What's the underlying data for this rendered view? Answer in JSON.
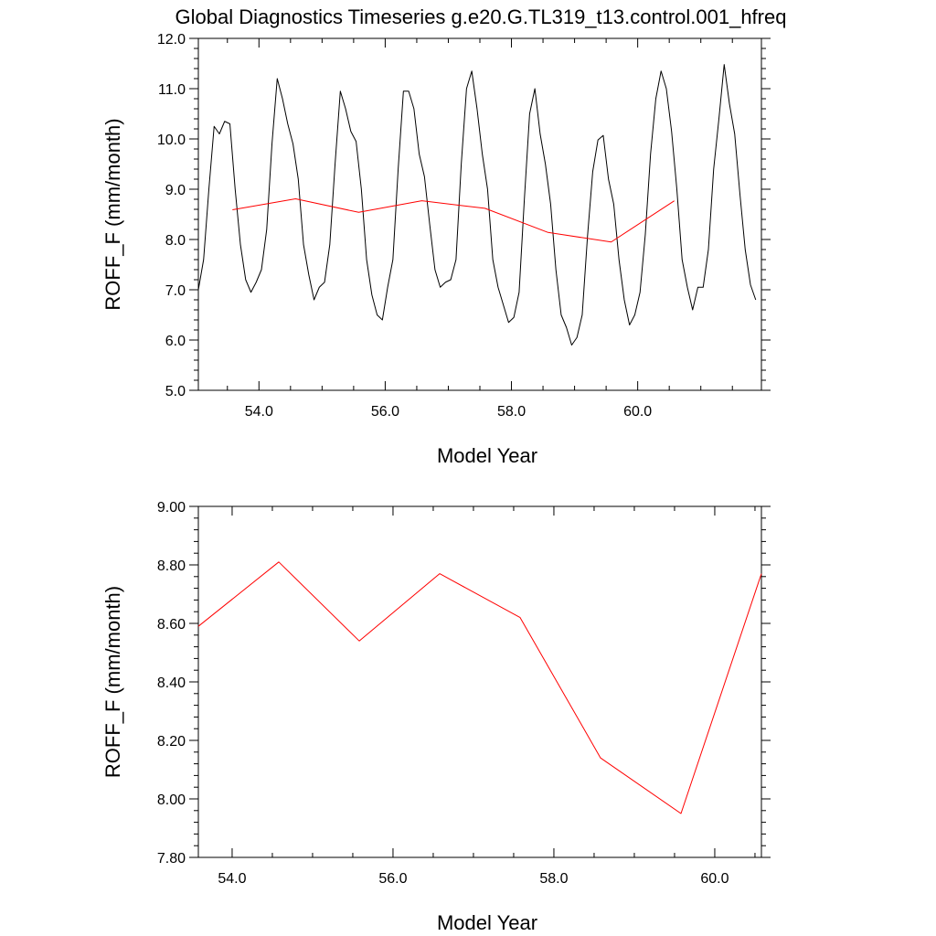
{
  "title": "Global Diagnostics Timeseries g.e20.G.TL319_t13.control.001_hfreq",
  "colors": {
    "monthly": "#000000",
    "annual": "#ff0000",
    "frame": "#000000"
  },
  "chart_data": [
    {
      "type": "line",
      "xlabel": "Model Year",
      "ylabel": "ROFF_F (mm/month)",
      "xlim": [
        53.04,
        61.96
      ],
      "ylim": [
        5.0,
        12.0
      ],
      "xticks": [
        54.0,
        56.0,
        58.0,
        60.0
      ],
      "xtick_labels": [
        "54.0",
        "56.0",
        "58.0",
        "60.0"
      ],
      "yticks": [
        5.0,
        6.0,
        7.0,
        8.0,
        9.0,
        10.0,
        11.0,
        12.0
      ],
      "ytick_labels": [
        "5.0",
        "6.0",
        "7.0",
        "8.0",
        "9.0",
        "10.0",
        "11.0",
        "12.0"
      ],
      "grid": false,
      "series": [
        {
          "key": "monthly",
          "x_start": 53.04,
          "x_step": 0.0833,
          "values": [
            7.0,
            7.6,
            9.0,
            10.25,
            10.1,
            10.35,
            10.3,
            9.0,
            7.9,
            7.2,
            6.95,
            7.15,
            7.4,
            8.2,
            9.9,
            11.2,
            10.8,
            10.3,
            9.9,
            9.2,
            7.9,
            7.3,
            6.8,
            7.05,
            7.15,
            7.9,
            9.5,
            10.95,
            10.6,
            10.15,
            9.95,
            9.0,
            7.6,
            6.9,
            6.5,
            6.4,
            7.05,
            7.6,
            9.4,
            10.95,
            10.95,
            10.6,
            9.7,
            9.25,
            8.3,
            7.4,
            7.05,
            7.15,
            7.2,
            7.6,
            9.5,
            11.0,
            11.35,
            10.6,
            9.7,
            9.0,
            7.6,
            7.05,
            6.7,
            6.35,
            6.45,
            6.95,
            8.8,
            10.5,
            11.0,
            10.1,
            9.5,
            8.7,
            7.4,
            6.5,
            6.25,
            5.9,
            6.05,
            6.5,
            8.05,
            9.35,
            9.98,
            10.07,
            9.2,
            8.7,
            7.6,
            6.8,
            6.3,
            6.5,
            6.95,
            8.1,
            9.7,
            10.8,
            11.35,
            11.0,
            10.15,
            9.0,
            7.6,
            7.05,
            6.6,
            7.05,
            7.05,
            7.8,
            9.4,
            10.4,
            11.48,
            10.7,
            10.1,
            8.9,
            7.8,
            7.1,
            6.8
          ]
        },
        {
          "key": "annual",
          "x": [
            53.58,
            54.58,
            55.58,
            56.58,
            57.58,
            58.58,
            59.58,
            60.58
          ],
          "values": [
            8.59,
            8.81,
            8.54,
            8.77,
            8.62,
            8.14,
            7.95,
            8.77
          ]
        }
      ]
    },
    {
      "type": "line",
      "xlabel": "Model Year",
      "ylabel": "ROFF_F (mm/month)",
      "xlim": [
        53.58,
        60.58
      ],
      "ylim": [
        7.8,
        9.0
      ],
      "xticks": [
        54.0,
        56.0,
        58.0,
        60.0
      ],
      "xtick_labels": [
        "54.0",
        "56.0",
        "58.0",
        "60.0"
      ],
      "yticks": [
        7.8,
        8.0,
        8.2,
        8.4,
        8.6,
        8.8,
        9.0
      ],
      "ytick_labels": [
        "7.80",
        "8.00",
        "8.20",
        "8.40",
        "8.60",
        "8.80",
        "9.00"
      ],
      "grid": false,
      "series": [
        {
          "key": "annual",
          "x": [
            53.58,
            54.58,
            55.58,
            56.58,
            57.58,
            58.58,
            59.58,
            60.58
          ],
          "values": [
            8.59,
            8.81,
            8.54,
            8.77,
            8.62,
            8.14,
            7.95,
            8.77
          ]
        }
      ]
    }
  ]
}
